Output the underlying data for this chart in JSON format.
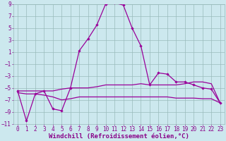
{
  "xlabel": "Windchill (Refroidissement éolien,°C)",
  "bg_color": "#cce8ee",
  "line_color_main": "#990099",
  "line_color_flat": "#990099",
  "xlim": [
    -0.5,
    23.5
  ],
  "ylim": [
    -11,
    9
  ],
  "yticks": [
    -11,
    -9,
    -7,
    -5,
    -3,
    -1,
    1,
    3,
    5,
    7,
    9
  ],
  "xticks": [
    0,
    1,
    2,
    3,
    4,
    5,
    6,
    7,
    8,
    9,
    10,
    11,
    12,
    13,
    14,
    15,
    16,
    17,
    18,
    19,
    20,
    21,
    22,
    23
  ],
  "series1_x": [
    0,
    1,
    2,
    3,
    4,
    5,
    6,
    7,
    8,
    9,
    10,
    11,
    12,
    13,
    14,
    15,
    16,
    17,
    18,
    19,
    20,
    21,
    22,
    23
  ],
  "series1_y": [
    -5.5,
    -10.5,
    -6.0,
    -5.5,
    -8.5,
    -8.8,
    -5.0,
    1.2,
    3.2,
    5.5,
    9.0,
    9.2,
    8.8,
    5.0,
    2.0,
    -4.5,
    -2.5,
    -2.7,
    -4.0,
    -4.0,
    -4.5,
    -5.0,
    -5.2,
    -7.5
  ],
  "series2_x": [
    0,
    1,
    2,
    3,
    4,
    5,
    6,
    7,
    8,
    9,
    10,
    11,
    12,
    13,
    14,
    15,
    16,
    17,
    18,
    19,
    20,
    21,
    22,
    23
  ],
  "series2_y": [
    -5.5,
    -5.5,
    -5.5,
    -5.5,
    -5.5,
    -5.2,
    -5.0,
    -5.0,
    -5.0,
    -4.8,
    -4.5,
    -4.5,
    -4.5,
    -4.5,
    -4.3,
    -4.5,
    -4.5,
    -4.5,
    -4.5,
    -4.3,
    -4.0,
    -4.0,
    -4.3,
    -7.5
  ],
  "series3_x": [
    0,
    1,
    2,
    3,
    4,
    5,
    6,
    7,
    8,
    9,
    10,
    11,
    12,
    13,
    14,
    15,
    16,
    17,
    18,
    19,
    20,
    21,
    22,
    23
  ],
  "series3_y": [
    -5.8,
    -6.0,
    -6.0,
    -6.2,
    -6.5,
    -7.0,
    -6.8,
    -6.5,
    -6.5,
    -6.5,
    -6.5,
    -6.5,
    -6.5,
    -6.5,
    -6.5,
    -6.5,
    -6.5,
    -6.5,
    -6.7,
    -6.7,
    -6.7,
    -6.8,
    -6.8,
    -7.5
  ],
  "grid_color": "#aacccc",
  "grid_color2": "#99bbbb",
  "font_color": "#880088",
  "tick_fontsize": 5.5,
  "label_fontsize": 6.5
}
